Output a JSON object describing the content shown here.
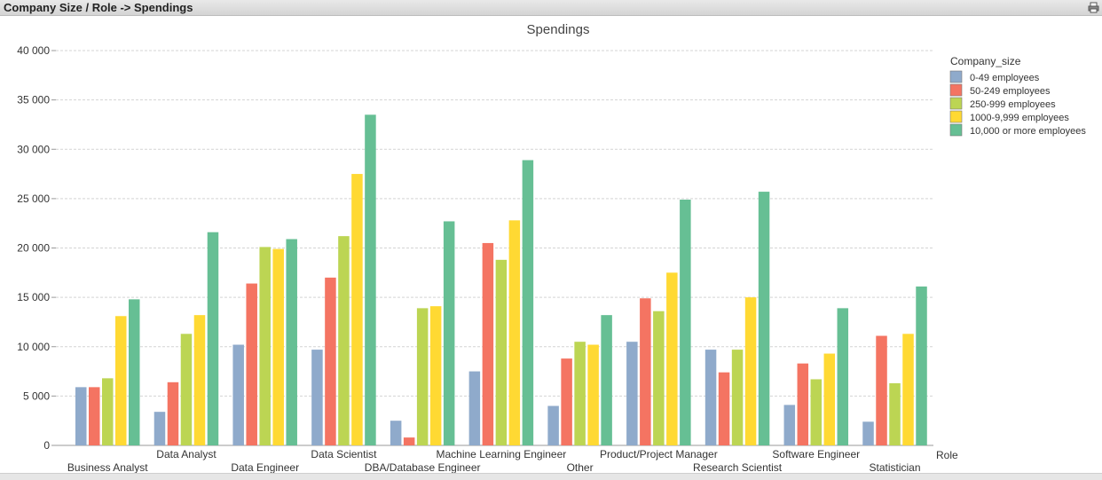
{
  "window": {
    "title": "Company Size / Role -> Spendings"
  },
  "chart_data": {
    "type": "bar",
    "title": "Spendings",
    "xlabel": "Role",
    "ylabel": "",
    "ylim": [
      0,
      40000
    ],
    "yticks": [
      0,
      5000,
      10000,
      15000,
      20000,
      25000,
      30000,
      35000,
      40000
    ],
    "ytick_labels": [
      "0",
      "5 000",
      "10 000",
      "15 000",
      "20 000",
      "25 000",
      "30 000",
      "35 000",
      "40 000"
    ],
    "grid": true,
    "legend_title": "Company_size",
    "legend_position": "top-right",
    "categories": [
      "Business Analyst",
      "Data Analyst",
      "Data Engineer",
      "Data Scientist",
      "DBA/Database Engineer",
      "Machine Learning Engineer",
      "Other",
      "Product/Project Manager",
      "Research Scientist",
      "Software Engineer",
      "Statistician"
    ],
    "series": [
      {
        "name": "0-49 employees",
        "color": "#8FAACB",
        "values": [
          5900,
          3400,
          10200,
          9700,
          2500,
          7500,
          4000,
          10500,
          9700,
          4100,
          2400
        ]
      },
      {
        "name": "50-249 employees",
        "color": "#F47462",
        "values": [
          5900,
          6400,
          16400,
          17000,
          800,
          20500,
          8800,
          14900,
          7400,
          8300,
          11100
        ]
      },
      {
        "name": "250-999 employees",
        "color": "#BCD553",
        "values": [
          6800,
          11300,
          20100,
          21200,
          13900,
          18800,
          10500,
          13600,
          9700,
          6700,
          6300
        ]
      },
      {
        "name": "1000-9,999 employees",
        "color": "#FFD933",
        "values": [
          13100,
          13200,
          19900,
          27500,
          14100,
          22800,
          10200,
          17500,
          15000,
          9300,
          11300
        ]
      },
      {
        "name": "10,000 or more employees",
        "color": "#66BF94",
        "values": [
          14800,
          21600,
          20900,
          33500,
          22700,
          28900,
          13200,
          24900,
          25700,
          13900,
          16100
        ]
      }
    ]
  }
}
